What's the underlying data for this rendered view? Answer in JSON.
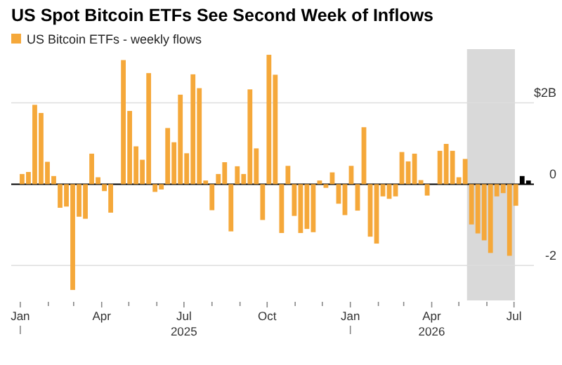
{
  "chart_data": {
    "type": "bar",
    "title": "US Spot Bitcoin ETFs See Second Week of Inflows",
    "legend": "top left",
    "grid": "y",
    "x": [
      "2025-01-03",
      "2025-01-10",
      "2025-01-17",
      "2025-01-24",
      "2025-01-31",
      "2025-02-07",
      "2025-02-14",
      "2025-02-21",
      "2025-02-28",
      "2025-03-07",
      "2025-03-14",
      "2025-03-21",
      "2025-03-28",
      "2025-04-04",
      "2025-04-11",
      "2025-04-18",
      "2025-04-25",
      "2025-05-02",
      "2025-05-09",
      "2025-05-16",
      "2025-05-23",
      "2025-05-30",
      "2025-06-06",
      "2025-06-13",
      "2025-06-20",
      "2025-06-27",
      "2025-07-04",
      "2025-07-11",
      "2025-07-18",
      "2025-07-25",
      "2025-08-01",
      "2025-08-08",
      "2025-08-15",
      "2025-08-22",
      "2025-08-29",
      "2025-09-05",
      "2025-09-12",
      "2025-09-19",
      "2025-09-26",
      "2025-10-03",
      "2025-10-10",
      "2025-10-17",
      "2025-10-24",
      "2025-10-31",
      "2025-11-07",
      "2025-11-14",
      "2025-11-21",
      "2025-11-28",
      "2025-12-05",
      "2025-12-12",
      "2025-12-19",
      "2025-12-26",
      "2026-01-02",
      "2026-01-09",
      "2026-01-16",
      "2026-01-23",
      "2026-01-30",
      "2026-02-06",
      "2026-02-13",
      "2026-02-20",
      "2026-02-27",
      "2026-03-06",
      "2026-03-13",
      "2026-03-20",
      "2026-03-27",
      "2026-04-03",
      "2026-04-10",
      "2026-04-17",
      "2026-04-24",
      "2026-05-01",
      "2026-05-08",
      "2026-05-15",
      "2026-05-22",
      "2026-05-29",
      "2026-06-05",
      "2026-06-12",
      "2026-06-19",
      "2026-06-26",
      "2026-07-03",
      "2026-07-10",
      "2026-07-17"
    ],
    "series": [
      {
        "name": "US Bitcoin ETFs - weekly flows",
        "color": "#f5a83a",
        "values": [
          0.25,
          0.3,
          1.95,
          1.75,
          0.55,
          0.2,
          -0.58,
          -0.55,
          -2.6,
          -0.8,
          -0.85,
          0.75,
          0.17,
          -0.17,
          -0.7,
          0,
          3.05,
          1.8,
          0.93,
          0.6,
          2.73,
          -0.19,
          -0.13,
          1.38,
          1.03,
          2.2,
          0.76,
          2.7,
          2.36,
          0.09,
          -0.64,
          0.25,
          0.54,
          -1.16,
          0.44,
          0.25,
          2.33,
          0.88,
          -0.88,
          3.18,
          2.69,
          -1.2,
          0.45,
          -0.78,
          -1.2,
          -1.1,
          -1.18,
          0.09,
          -0.09,
          0.29,
          -0.48,
          -0.76,
          0.45,
          -0.65,
          1.4,
          -1.29,
          -1.46,
          -0.3,
          -0.36,
          -0.3,
          0.79,
          0.56,
          0.75,
          0.1,
          -0.28,
          0,
          0.82,
          0.99,
          0.82,
          0.17,
          0.62,
          -0.99,
          -1.21,
          -1.38,
          -1.69,
          -0.3,
          -0.22,
          -1.76,
          -0.53,
          0.2,
          0.09
        ],
        "colors": [
          "#f5a83a",
          "#f5a83a",
          "#f5a83a",
          "#f5a83a",
          "#f5a83a",
          "#f5a83a",
          "#f5a83a",
          "#f5a83a",
          "#f5a83a",
          "#f5a83a",
          "#f5a83a",
          "#f5a83a",
          "#f5a83a",
          "#f5a83a",
          "#f5a83a",
          "#f5a83a",
          "#f5a83a",
          "#f5a83a",
          "#f5a83a",
          "#f5a83a",
          "#f5a83a",
          "#f5a83a",
          "#f5a83a",
          "#f5a83a",
          "#f5a83a",
          "#f5a83a",
          "#f5a83a",
          "#f5a83a",
          "#f5a83a",
          "#f5a83a",
          "#f5a83a",
          "#f5a83a",
          "#f5a83a",
          "#f5a83a",
          "#f5a83a",
          "#f5a83a",
          "#f5a83a",
          "#f5a83a",
          "#f5a83a",
          "#f5a83a",
          "#f5a83a",
          "#f5a83a",
          "#f5a83a",
          "#f5a83a",
          "#f5a83a",
          "#f5a83a",
          "#f5a83a",
          "#f5a83a",
          "#f5a83a",
          "#f5a83a",
          "#f5a83a",
          "#f5a83a",
          "#f5a83a",
          "#f5a83a",
          "#f5a83a",
          "#f5a83a",
          "#f5a83a",
          "#f5a83a",
          "#f5a83a",
          "#f5a83a",
          "#f5a83a",
          "#f5a83a",
          "#f5a83a",
          "#f5a83a",
          "#f5a83a",
          "#f5a83a",
          "#f5a83a",
          "#f5a83a",
          "#f5a83a",
          "#f5a83a",
          "#f5a83a",
          "#f5a83a",
          "#f5a83a",
          "#f5a83a",
          "#f5a83a",
          "#f5a83a",
          "#f5a83a",
          "#f5a83a",
          "#f5a83a",
          "#000000",
          "#000000"
        ]
      }
    ],
    "xlim": [
      "2024-12-22",
      "2026-07-23"
    ],
    "xticks": [
      {
        "value": "2025-01-01",
        "label": "Jan"
      },
      {
        "value": "2025-02-01",
        "label": null
      },
      {
        "value": "2025-03-01",
        "label": null
      },
      {
        "value": "2025-04-01",
        "label": "Apr"
      },
      {
        "value": "2025-05-01",
        "label": null
      },
      {
        "value": "2025-06-01",
        "label": null
      },
      {
        "value": "2025-07-01",
        "label": "Jul\n2025"
      },
      {
        "value": "2025-08-01",
        "label": null
      },
      {
        "value": "2025-09-01",
        "label": null
      },
      {
        "value": "2025-10-01",
        "label": "Oct"
      },
      {
        "value": "2025-11-01",
        "label": null
      },
      {
        "value": "2025-12-01",
        "label": null
      },
      {
        "value": "2026-01-01",
        "label": "Jan"
      },
      {
        "value": "2026-02-01",
        "label": null
      },
      {
        "value": "2026-03-01",
        "label": null
      },
      {
        "value": "2026-04-01",
        "label": "Apr\n2026"
      },
      {
        "value": "2026-05-01",
        "label": null
      },
      {
        "value": "2026-06-01",
        "label": null
      },
      {
        "value": "2026-07-01",
        "label": "Jul"
      }
    ],
    "ylim": [
      -2.65,
      3.25
    ],
    "yticks": [
      {
        "value": -2,
        "label": "-2"
      },
      {
        "value": 0,
        "label": "0"
      },
      {
        "value": 2,
        "label": "$2B"
      }
    ],
    "bands": [
      {
        "axis": "x",
        "from": "2026-05-10",
        "to": "2026-07-02",
        "color": "#d9d9d9"
      }
    ]
  }
}
